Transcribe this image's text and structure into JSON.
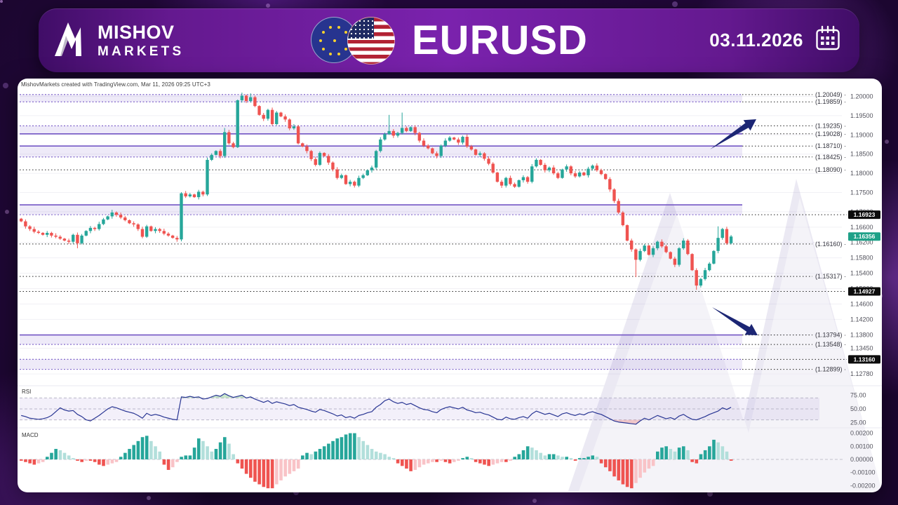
{
  "header": {
    "brand_line1": "MISHOV",
    "brand_line2": "MARKETS",
    "symbol": "EURUSD",
    "date": "03.11.2026"
  },
  "attribution": "MishovMarkets created with TradingView.com, Mar 11, 2026 09:25 UTC+3",
  "colors": {
    "candle_up": "#26a69a",
    "candle_down": "#ef5350",
    "zone_fill": "#7b5cc9",
    "zone_edge": "#7457c5",
    "level_line": "#222222",
    "badge_black": "#0c0c0c",
    "badge_teal": "#1fa188",
    "rsi_line": "#283593",
    "rsi_over_fill": "#66bb6a",
    "rsi_under_fill": "#e57373",
    "macd_pos_rise": "#26a69a",
    "macd_pos_fall": "#b2dfdb",
    "macd_neg_fall": "#ef5350",
    "macd_neg_rise": "#f9c3c7",
    "arrow": "#1c2674",
    "grid": "#f1f0f5",
    "axis_text": "#52525c"
  },
  "chart_data": {
    "type": "candlestick",
    "symbol": "EURUSD",
    "timeframe_note": "daily candles, price range ~1.1278 - 1.2005",
    "price_axis_ticks": [
      {
        "t": "1.20000",
        "v": 1.2
      },
      {
        "t": "1.19500",
        "v": 1.195
      },
      {
        "t": "1.19000",
        "v": 1.19
      },
      {
        "t": "1.18500",
        "v": 1.185
      },
      {
        "t": "1.18000",
        "v": 1.18
      },
      {
        "t": "1.17500",
        "v": 1.175
      },
      {
        "t": "1.17000",
        "v": 1.17,
        "hide": true
      },
      {
        "t": "1.16600",
        "v": 1.166
      },
      {
        "t": "1.16200",
        "v": 1.162,
        "hide": true
      },
      {
        "t": "1.15800",
        "v": 1.158
      },
      {
        "t": "1.15400",
        "v": 1.154
      },
      {
        "t": "1.15000",
        "v": 1.15,
        "hide": true
      },
      {
        "t": "1.14600",
        "v": 1.146
      },
      {
        "t": "1.14200",
        "v": 1.142
      },
      {
        "t": "1.13800",
        "v": 1.138
      },
      {
        "t": "1.13450",
        "v": 1.1345
      },
      {
        "t": "1.12780",
        "v": 1.1278
      }
    ],
    "zones": [
      {
        "top": 1.20049,
        "bottom": 1.19859,
        "top_edge": "dotted",
        "bottom_edge": "dotted"
      },
      {
        "top": 1.19235,
        "bottom": 1.19028,
        "top_edge": "dotted",
        "bottom_edge": "solid"
      },
      {
        "top": 1.1871,
        "bottom": 1.18425,
        "top_edge": "solid",
        "bottom_edge": "dotted"
      },
      {
        "top": 1.1718,
        "bottom": 1.16923,
        "top_edge": "solid",
        "bottom_edge": "dotted"
      },
      {
        "top": 1.13794,
        "bottom": 1.13548,
        "top_edge": "solid",
        "bottom_edge": "dotted"
      },
      {
        "top": 1.1316,
        "bottom": 1.12899,
        "top_edge": "dotted",
        "bottom_edge": "dotted"
      }
    ],
    "levels": [
      {
        "v": 1.20049,
        "label": "(1.20049)"
      },
      {
        "v": 1.19859,
        "label": "(1.19859)"
      },
      {
        "v": 1.19235,
        "label": "(1.19235)"
      },
      {
        "v": 1.19028,
        "label": "(1.19028)"
      },
      {
        "v": 1.1871,
        "label": "(1.18710)"
      },
      {
        "v": 1.18425,
        "label": "(1.18425)"
      },
      {
        "v": 1.1809,
        "label": "(1.18090)",
        "full": true
      },
      {
        "v": 1.16923,
        "label": "1.16923",
        "badge": true
      },
      {
        "v": 1.1616,
        "label": "(1.16160)",
        "full": true
      },
      {
        "v": 1.15317,
        "label": "(1.15317)",
        "full": true
      },
      {
        "v": 1.14927,
        "label": "1.14927",
        "badge": true,
        "full": true
      },
      {
        "v": 1.13794,
        "label": "(1.13794)"
      },
      {
        "v": 1.13548,
        "label": "(1.13548)"
      },
      {
        "v": 1.1316,
        "label": "1.13160",
        "badge": true
      },
      {
        "v": 1.12899,
        "label": "(1.12899)"
      }
    ],
    "current_price": {
      "value": 1.16356,
      "label": "1.16356"
    },
    "candles": {
      "first_open": 1.1682,
      "closes": [
        1.1675,
        1.1662,
        1.1655,
        1.1648,
        1.1645,
        1.164,
        1.1645,
        1.1638,
        1.1635,
        1.163,
        1.1625,
        1.1622,
        1.164,
        1.1618,
        1.1638,
        1.165,
        1.1658,
        1.1655,
        1.1668,
        1.168,
        1.1688,
        1.1698,
        1.1692,
        1.1685,
        1.1678,
        1.167,
        1.1667,
        1.1655,
        1.1635,
        1.1662,
        1.165,
        1.1655,
        1.165,
        1.1643,
        1.1638,
        1.1632,
        1.1628,
        1.1748,
        1.174,
        1.1745,
        1.1738,
        1.1752,
        1.1745,
        1.1835,
        1.1848,
        1.1858,
        1.1845,
        1.1907,
        1.1878,
        1.1868,
        1.199,
        1.2002,
        1.1988,
        1.1998,
        1.1975,
        1.1952,
        1.1942,
        1.1965,
        1.1928,
        1.1958,
        1.1948,
        1.194,
        1.1917,
        1.1922,
        1.1878,
        1.187,
        1.1858,
        1.1837,
        1.1822,
        1.1853,
        1.1845,
        1.1828,
        1.181,
        1.1788,
        1.1795,
        1.1772,
        1.1778,
        1.1768,
        1.1788,
        1.1795,
        1.1808,
        1.1815,
        1.1858,
        1.1888,
        1.1902,
        1.191,
        1.1898,
        1.1905,
        1.1918,
        1.191,
        1.192,
        1.1905,
        1.1885,
        1.1872,
        1.1865,
        1.1852,
        1.1845,
        1.1872,
        1.1885,
        1.1893,
        1.1888,
        1.188,
        1.1895,
        1.187,
        1.1862,
        1.1848,
        1.1852,
        1.1838,
        1.1825,
        1.1802,
        1.1778,
        1.1768,
        1.1788,
        1.1772,
        1.1765,
        1.1782,
        1.179,
        1.1778,
        1.1818,
        1.1835,
        1.1822,
        1.1808,
        1.1815,
        1.18,
        1.1788,
        1.181,
        1.1818,
        1.18,
        1.1792,
        1.1802,
        1.1795,
        1.1812,
        1.182,
        1.1808,
        1.1798,
        1.1785,
        1.1758,
        1.1728,
        1.1698,
        1.1665,
        1.1625,
        1.1602,
        1.1575,
        1.1598,
        1.1612,
        1.1588,
        1.1605,
        1.1622,
        1.161,
        1.1595,
        1.1578,
        1.1562,
        1.1605,
        1.1625,
        1.159,
        1.1548,
        1.1508,
        1.1525,
        1.1548,
        1.1565,
        1.1598,
        1.1632,
        1.1655,
        1.1618,
        1.16356
      ],
      "wick_overrides": {
        "13": {
          "l": 1.1605
        },
        "21": {
          "h": 1.1705
        },
        "47": {
          "h": 1.1918
        },
        "51": {
          "h": 1.201
        },
        "53": {
          "h": 1.2008
        },
        "85": {
          "h": 1.1952
        },
        "88": {
          "h": 1.1958
        },
        "142": {
          "l": 1.153
        },
        "156": {
          "l": 1.1497
        },
        "161": {
          "h": 1.1662
        }
      }
    },
    "rsi": {
      "label": "RSI",
      "ticks": [
        {
          "t": "75.00",
          "v": 75
        },
        {
          "t": "50.00",
          "v": 50
        },
        {
          "t": "25.00",
          "v": 25
        }
      ],
      "bands": [
        70,
        50,
        30
      ],
      "values": [
        38,
        36,
        33,
        32,
        31,
        32,
        34,
        38,
        45,
        52,
        48,
        46,
        47,
        40,
        36,
        30,
        28,
        33,
        38,
        44,
        50,
        54,
        52,
        49,
        46,
        44,
        42,
        38,
        33,
        42,
        38,
        40,
        38,
        35,
        33,
        31,
        30,
        72,
        71,
        73,
        71,
        72,
        68,
        69,
        72,
        75,
        73,
        78,
        74,
        71,
        73,
        75,
        70,
        72,
        68,
        65,
        62,
        65,
        60,
        63,
        61,
        59,
        56,
        58,
        53,
        51,
        49,
        46,
        44,
        49,
        47,
        44,
        41,
        37,
        39,
        34,
        36,
        33,
        38,
        40,
        43,
        45,
        53,
        58,
        65,
        68,
        63,
        60,
        62,
        58,
        60,
        56,
        52,
        49,
        48,
        45,
        43,
        49,
        52,
        54,
        52,
        50,
        53,
        48,
        46,
        43,
        44,
        41,
        39,
        35,
        31,
        30,
        35,
        32,
        31,
        34,
        36,
        33,
        41,
        46,
        43,
        40,
        42,
        39,
        36,
        41,
        43,
        40,
        38,
        41,
        39,
        43,
        45,
        42,
        40,
        36,
        32,
        28,
        26,
        25,
        24,
        23,
        22,
        28,
        33,
        30,
        34,
        38,
        35,
        32,
        34,
        31,
        37,
        40,
        35,
        31,
        30,
        33,
        36,
        40,
        43,
        46,
        52,
        49,
        53
      ]
    },
    "macd": {
      "label": "MACD",
      "ticks": [
        {
          "t": "0.00200",
          "v": 0.002
        },
        {
          "t": "0.00100",
          "v": 0.001
        },
        {
          "t": "0.00000",
          "v": 0
        },
        {
          "t": "-0.00100",
          "v": -0.001
        },
        {
          "t": "-0.00200",
          "v": -0.002
        }
      ],
      "values": [
        -0.0001,
        -0.0002,
        -0.0003,
        -0.0004,
        -0.0003,
        -0.0002,
        0.0002,
        0.0005,
        0.0008,
        0.0007,
        0.0005,
        0.0003,
        0.0001,
        -0.0001,
        -0.0002,
        -0.0001,
        -0.0001,
        -0.0002,
        -0.0004,
        -0.0005,
        -0.0004,
        -0.0003,
        -0.0002,
        0.0002,
        0.0005,
        0.0008,
        0.0011,
        0.0014,
        0.0017,
        0.0018,
        0.0014,
        0.001,
        0.0006,
        -0.0004,
        -0.0008,
        -0.0006,
        -0.0002,
        0.0002,
        0.0003,
        0.0003,
        0.0009,
        0.0016,
        0.0014,
        0.001,
        0.0006,
        0.0008,
        0.0013,
        0.0017,
        0.0012,
        0.0004,
        -0.0003,
        -0.0007,
        -0.0011,
        -0.0014,
        -0.0017,
        -0.0019,
        -0.0021,
        -0.0022,
        -0.0022,
        -0.0019,
        -0.0016,
        -0.0013,
        -0.0011,
        -0.0009,
        -0.0007,
        0.0003,
        0.0005,
        0.0004,
        0.0006,
        0.0008,
        0.001,
        0.0012,
        0.0014,
        0.0016,
        0.0017,
        0.0019,
        0.002,
        0.002,
        0.0017,
        0.0014,
        0.0011,
        0.0008,
        0.0006,
        0.0005,
        0.0004,
        0.0002,
        0.0001,
        -0.0003,
        -0.0005,
        -0.0007,
        -0.0009,
        -0.0008,
        -0.0006,
        -0.0004,
        -0.0003,
        -0.0002,
        -0.0002,
        -0.0001,
        -0.0002,
        -0.0003,
        -0.0002,
        -0.0001,
        0.0001,
        0.0002,
        0.0001,
        -0.0002,
        -0.0003,
        -0.0004,
        -0.0005,
        -0.0004,
        -0.0003,
        -0.0002,
        -0.0002,
        -0.0001,
        0.0002,
        0.0004,
        0.0007,
        0.001,
        0.0009,
        0.0007,
        0.0005,
        0.0003,
        0.0004,
        0.0004,
        0.0003,
        0.0002,
        0.0002,
        0.0001,
        -0.0001,
        0.0001,
        0.0001,
        0.0002,
        0.0003,
        0.0002,
        -0.0003,
        -0.0006,
        -0.0009,
        -0.0013,
        -0.0016,
        -0.0019,
        -0.0021,
        -0.0022,
        -0.0018,
        -0.0014,
        -0.001,
        -0.0007,
        -0.0005,
        0.0006,
        0.0009,
        0.001,
        0.0008,
        0.0006,
        0.0009,
        0.001,
        0.0007,
        -0.0002,
        -0.0003,
        0.0004,
        0.0007,
        0.001,
        0.0015,
        0.0013,
        0.001,
        0.0006,
        -0.0001
      ]
    },
    "annotations": [
      {
        "type": "arrow",
        "direction": "up-right"
      },
      {
        "type": "arrow",
        "direction": "down-right"
      }
    ]
  }
}
